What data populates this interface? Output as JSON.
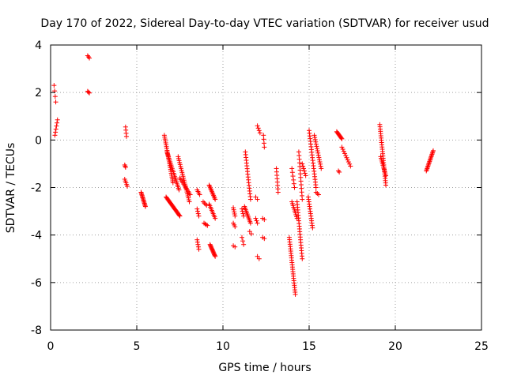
{
  "chart_data": {
    "type": "scatter",
    "title": "Day 170 of 2022, Sidereal Day-to-day VTEC variation (SDTVAR) for receiver usud",
    "xlabel": "GPS time / hours",
    "ylabel": "SDTVAR / TECUs",
    "xlim": [
      0,
      25
    ],
    "ylim": [
      -8,
      4
    ],
    "x_ticks": [
      0,
      5,
      10,
      15,
      20,
      25
    ],
    "y_ticks": [
      -8,
      -6,
      -4,
      -2,
      0,
      2,
      4
    ],
    "grid": true,
    "marker": "+",
    "color": "#ff0000",
    "series": [
      {
        "name": "SDTVAR",
        "segments": [
          {
            "x0": 0.2,
            "x1": 0.3,
            "y0": 2.3,
            "y1": 1.6,
            "n": 4
          },
          {
            "x0": 0.25,
            "x1": 0.4,
            "y0": 0.2,
            "y1": 0.85,
            "n": 6
          },
          {
            "x0": 2.15,
            "x1": 2.25,
            "y0": 3.55,
            "y1": 3.45,
            "n": 3
          },
          {
            "x0": 2.15,
            "x1": 2.25,
            "y0": 2.05,
            "y1": 1.98,
            "n": 3
          },
          {
            "x0": 4.35,
            "x1": 4.4,
            "y0": 0.55,
            "y1": 0.15,
            "n": 4
          },
          {
            "x0": 4.3,
            "x1": 4.35,
            "y0": -1.05,
            "y1": -1.15,
            "n": 3
          },
          {
            "x0": 4.3,
            "x1": 4.45,
            "y0": -1.65,
            "y1": -1.95,
            "n": 5
          },
          {
            "x0": 5.25,
            "x1": 5.5,
            "y0": -2.2,
            "y1": -2.8,
            "n": 14
          },
          {
            "x0": 6.6,
            "x1": 7.1,
            "y0": 0.2,
            "y1": -1.8,
            "n": 26
          },
          {
            "x0": 6.75,
            "x1": 7.45,
            "y0": -0.5,
            "y1": -2.1,
            "n": 24
          },
          {
            "x0": 6.7,
            "x1": 7.5,
            "y0": -2.4,
            "y1": -3.2,
            "n": 22
          },
          {
            "x0": 7.4,
            "x1": 8.05,
            "y0": -0.7,
            "y1": -2.6,
            "n": 24
          },
          {
            "x0": 7.5,
            "x1": 8.1,
            "y0": -1.6,
            "y1": -2.3,
            "n": 12
          },
          {
            "x0": 8.5,
            "x1": 8.65,
            "y0": -2.1,
            "y1": -2.3,
            "n": 4
          },
          {
            "x0": 8.5,
            "x1": 8.6,
            "y0": -2.9,
            "y1": -3.2,
            "n": 4
          },
          {
            "x0": 8.5,
            "x1": 8.6,
            "y0": -4.2,
            "y1": -4.6,
            "n": 5
          },
          {
            "x0": 8.85,
            "x1": 9.05,
            "y0": -2.6,
            "y1": -2.75,
            "n": 4
          },
          {
            "x0": 8.9,
            "x1": 9.1,
            "y0": -3.5,
            "y1": -3.6,
            "n": 4
          },
          {
            "x0": 9.2,
            "x1": 9.55,
            "y0": -1.9,
            "y1": -2.5,
            "n": 12
          },
          {
            "x0": 9.2,
            "x1": 9.55,
            "y0": -2.7,
            "y1": -3.3,
            "n": 10
          },
          {
            "x0": 9.25,
            "x1": 9.55,
            "y0": -4.4,
            "y1": -4.9,
            "n": 14
          },
          {
            "x0": 10.6,
            "x1": 10.7,
            "y0": -2.85,
            "y1": -3.2,
            "n": 5
          },
          {
            "x0": 10.6,
            "x1": 10.7,
            "y0": -3.5,
            "y1": -3.65,
            "n": 3
          },
          {
            "x0": 10.6,
            "x1": 10.7,
            "y0": -4.45,
            "y1": -4.5,
            "n": 2
          },
          {
            "x0": 11.1,
            "x1": 11.2,
            "y0": -2.9,
            "y1": -3.2,
            "n": 4
          },
          {
            "x0": 11.1,
            "x1": 11.2,
            "y0": -4.1,
            "y1": -4.4,
            "n": 3
          },
          {
            "x0": 11.3,
            "x1": 11.6,
            "y0": -0.5,
            "y1": -2.5,
            "n": 18
          },
          {
            "x0": 11.25,
            "x1": 11.6,
            "y0": -2.8,
            "y1": -3.5,
            "n": 12
          },
          {
            "x0": 11.55,
            "x1": 11.65,
            "y0": -3.85,
            "y1": -3.95,
            "n": 2
          },
          {
            "x0": 11.9,
            "x1": 12.0,
            "y0": -2.4,
            "y1": -2.5,
            "n": 2
          },
          {
            "x0": 11.9,
            "x1": 12.0,
            "y0": -3.3,
            "y1": -3.5,
            "n": 3
          },
          {
            "x0": 12.0,
            "x1": 12.1,
            "y0": -4.9,
            "y1": -5.0,
            "n": 2
          },
          {
            "x0": 12.0,
            "x1": 12.15,
            "y0": 0.6,
            "y1": 0.3,
            "n": 4
          },
          {
            "x0": 12.35,
            "x1": 12.4,
            "y0": 0.2,
            "y1": -0.3,
            "n": 4
          },
          {
            "x0": 12.3,
            "x1": 12.4,
            "y0": -3.3,
            "y1": -3.35,
            "n": 2
          },
          {
            "x0": 12.3,
            "x1": 12.4,
            "y0": -4.1,
            "y1": -4.15,
            "n": 2
          },
          {
            "x0": 13.1,
            "x1": 13.2,
            "y0": -1.2,
            "y1": -2.2,
            "n": 8
          },
          {
            "x0": 13.85,
            "x1": 14.2,
            "y0": -4.1,
            "y1": -6.5,
            "n": 26
          },
          {
            "x0": 14.0,
            "x1": 14.15,
            "y0": -1.2,
            "y1": -2.0,
            "n": 6
          },
          {
            "x0": 14.0,
            "x1": 14.3,
            "y0": -2.6,
            "y1": -3.3,
            "n": 10
          },
          {
            "x0": 14.3,
            "x1": 14.6,
            "y0": -2.6,
            "y1": -5.0,
            "n": 22
          },
          {
            "x0": 14.4,
            "x1": 14.6,
            "y0": -0.5,
            "y1": -2.5,
            "n": 14
          },
          {
            "x0": 14.6,
            "x1": 14.8,
            "y0": -1.0,
            "y1": -1.5,
            "n": 6
          },
          {
            "x0": 14.95,
            "x1": 15.2,
            "y0": -2.4,
            "y1": -3.7,
            "n": 14
          },
          {
            "x0": 15.0,
            "x1": 15.4,
            "y0": 0.4,
            "y1": -2.0,
            "n": 22
          },
          {
            "x0": 15.3,
            "x1": 15.7,
            "y0": 0.2,
            "y1": -1.2,
            "n": 16
          },
          {
            "x0": 15.4,
            "x1": 15.55,
            "y0": -2.2,
            "y1": -2.3,
            "n": 3
          },
          {
            "x0": 16.6,
            "x1": 16.9,
            "y0": 0.35,
            "y1": 0.05,
            "n": 10
          },
          {
            "x0": 16.7,
            "x1": 16.75,
            "y0": -1.3,
            "y1": -1.35,
            "n": 2
          },
          {
            "x0": 16.9,
            "x1": 17.4,
            "y0": -0.3,
            "y1": -1.1,
            "n": 10
          },
          {
            "x0": 19.1,
            "x1": 19.45,
            "y0": 0.65,
            "y1": -1.9,
            "n": 28
          },
          {
            "x0": 19.15,
            "x1": 19.45,
            "y0": -0.7,
            "y1": -1.5,
            "n": 12
          },
          {
            "x0": 21.8,
            "x1": 22.2,
            "y0": -1.3,
            "y1": -0.45,
            "n": 18
          }
        ]
      }
    ]
  }
}
